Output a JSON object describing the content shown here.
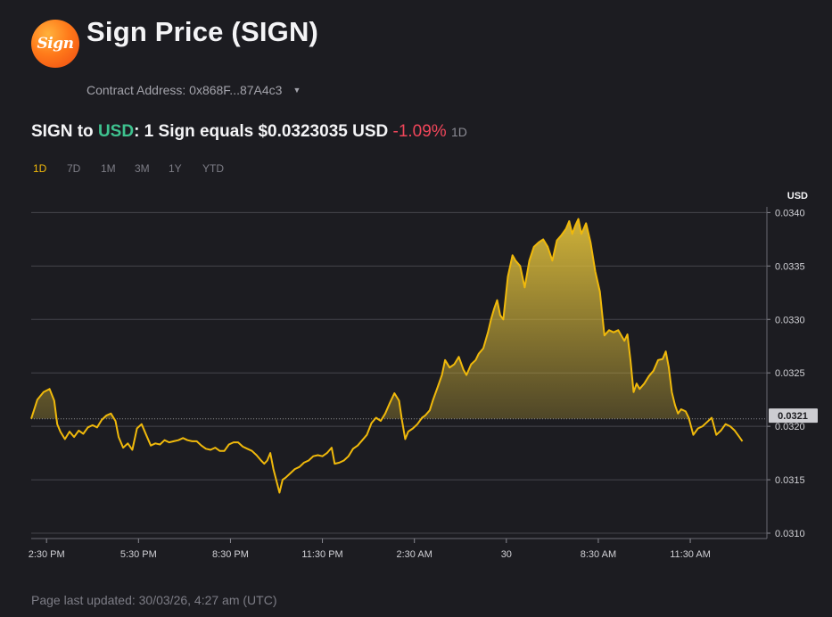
{
  "header": {
    "logo_text": "Sign",
    "title": "Sign Price (SIGN)"
  },
  "contract": {
    "label": "Contract Address: 0x868F...87A4c3"
  },
  "price": {
    "pair_base": "SIGN to ",
    "pair_quote": "USD",
    "equals_text": ": 1 Sign equals $0.0323035 USD ",
    "change": "-1.09%",
    "period": "1D"
  },
  "ranges": [
    "1D",
    "7D",
    "1M",
    "3M",
    "1Y",
    "YTD"
  ],
  "active_range": "1D",
  "footer": {
    "updated": "Page last updated: 30/03/26, 4:27 am (UTC)"
  },
  "colors": {
    "line": "#f0b90b",
    "positive": "#3ec28f",
    "negative": "#f0465a",
    "background": "#1c1c21"
  },
  "chart_data": {
    "type": "area",
    "unit_label": "USD",
    "current_price_label": "0.0321",
    "baseline": 0.03207,
    "y_ticks": [
      "0.0340",
      "0.0335",
      "0.0330",
      "0.0325",
      "0.0320",
      "0.0315",
      "0.0310"
    ],
    "y_tick_values": [
      0.034,
      0.0335,
      0.033,
      0.0325,
      0.032,
      0.0315,
      0.031
    ],
    "ylim": [
      0.03095,
      0.03402
    ],
    "x_ticks": [
      {
        "label": "2:30 PM",
        "t": 1
      },
      {
        "label": "5:30 PM",
        "t": 4
      },
      {
        "label": "8:30 PM",
        "t": 7
      },
      {
        "label": "11:30 PM",
        "t": 10
      },
      {
        "label": "2:30 AM",
        "t": 13
      },
      {
        "label": "30",
        "t": 16
      },
      {
        "label": "8:30 AM",
        "t": 19
      },
      {
        "label": "11:30 AM",
        "t": 22
      }
    ],
    "xlim": [
      0.5,
      24.5
    ],
    "points": [
      [
        0.5,
        0.03207
      ],
      [
        0.7,
        0.03225
      ],
      [
        0.9,
        0.03232
      ],
      [
        1.1,
        0.03235
      ],
      [
        1.25,
        0.03224
      ],
      [
        1.35,
        0.03202
      ],
      [
        1.45,
        0.03195
      ],
      [
        1.6,
        0.03188
      ],
      [
        1.75,
        0.03195
      ],
      [
        1.9,
        0.0319
      ],
      [
        2.05,
        0.03196
      ],
      [
        2.2,
        0.03193
      ],
      [
        2.35,
        0.03199
      ],
      [
        2.5,
        0.03201
      ],
      [
        2.65,
        0.03199
      ],
      [
        2.8,
        0.03206
      ],
      [
        2.95,
        0.0321
      ],
      [
        3.1,
        0.03212
      ],
      [
        3.25,
        0.03205
      ],
      [
        3.35,
        0.0319
      ],
      [
        3.5,
        0.0318
      ],
      [
        3.65,
        0.03184
      ],
      [
        3.8,
        0.03178
      ],
      [
        3.95,
        0.03198
      ],
      [
        4.1,
        0.03202
      ],
      [
        4.25,
        0.03192
      ],
      [
        4.4,
        0.03182
      ],
      [
        4.55,
        0.03184
      ],
      [
        4.7,
        0.03183
      ],
      [
        4.85,
        0.03187
      ],
      [
        5.0,
        0.03185
      ],
      [
        5.15,
        0.03186
      ],
      [
        5.3,
        0.03187
      ],
      [
        5.45,
        0.03189
      ],
      [
        5.6,
        0.03187
      ],
      [
        5.75,
        0.03186
      ],
      [
        5.9,
        0.03186
      ],
      [
        6.05,
        0.03182
      ],
      [
        6.2,
        0.03179
      ],
      [
        6.35,
        0.03178
      ],
      [
        6.5,
        0.0318
      ],
      [
        6.65,
        0.03177
      ],
      [
        6.8,
        0.03177
      ],
      [
        6.95,
        0.03183
      ],
      [
        7.1,
        0.03185
      ],
      [
        7.25,
        0.03185
      ],
      [
        7.4,
        0.03181
      ],
      [
        7.55,
        0.03179
      ],
      [
        7.7,
        0.03177
      ],
      [
        7.85,
        0.03173
      ],
      [
        8.0,
        0.03168
      ],
      [
        8.1,
        0.03165
      ],
      [
        8.2,
        0.03168
      ],
      [
        8.3,
        0.03175
      ],
      [
        8.4,
        0.0316
      ],
      [
        8.5,
        0.03149
      ],
      [
        8.6,
        0.03138
      ],
      [
        8.7,
        0.0315
      ],
      [
        8.8,
        0.03152
      ],
      [
        8.95,
        0.03156
      ],
      [
        9.1,
        0.0316
      ],
      [
        9.25,
        0.03162
      ],
      [
        9.4,
        0.03166
      ],
      [
        9.55,
        0.03168
      ],
      [
        9.7,
        0.03172
      ],
      [
        9.85,
        0.03173
      ],
      [
        10.0,
        0.03172
      ],
      [
        10.15,
        0.03175
      ],
      [
        10.3,
        0.0318
      ],
      [
        10.4,
        0.03165
      ],
      [
        10.55,
        0.03166
      ],
      [
        10.7,
        0.03168
      ],
      [
        10.85,
        0.03172
      ],
      [
        11.0,
        0.03179
      ],
      [
        11.15,
        0.03182
      ],
      [
        11.3,
        0.03187
      ],
      [
        11.45,
        0.03192
      ],
      [
        11.6,
        0.03203
      ],
      [
        11.75,
        0.03208
      ],
      [
        11.9,
        0.03205
      ],
      [
        12.05,
        0.03212
      ],
      [
        12.2,
        0.03222
      ],
      [
        12.35,
        0.03231
      ],
      [
        12.5,
        0.03224
      ],
      [
        12.6,
        0.03205
      ],
      [
        12.7,
        0.03188
      ],
      [
        12.8,
        0.03195
      ],
      [
        12.95,
        0.03198
      ],
      [
        13.1,
        0.03202
      ],
      [
        13.25,
        0.03208
      ],
      [
        13.35,
        0.0321
      ],
      [
        13.5,
        0.03215
      ],
      [
        13.6,
        0.03224
      ],
      [
        13.75,
        0.03236
      ],
      [
        13.9,
        0.03248
      ],
      [
        14.0,
        0.03262
      ],
      [
        14.15,
        0.03255
      ],
      [
        14.3,
        0.03258
      ],
      [
        14.45,
        0.03265
      ],
      [
        14.6,
        0.03253
      ],
      [
        14.7,
        0.03248
      ],
      [
        14.85,
        0.03258
      ],
      [
        15.0,
        0.03262
      ],
      [
        15.1,
        0.03268
      ],
      [
        15.25,
        0.03273
      ],
      [
        15.4,
        0.03288
      ],
      [
        15.5,
        0.033
      ],
      [
        15.6,
        0.0331
      ],
      [
        15.7,
        0.03318
      ],
      [
        15.8,
        0.03304
      ],
      [
        15.9,
        0.033
      ],
      [
        16.05,
        0.0334
      ],
      [
        16.2,
        0.0336
      ],
      [
        16.3,
        0.03355
      ],
      [
        16.45,
        0.0335
      ],
      [
        16.6,
        0.0333
      ],
      [
        16.75,
        0.03355
      ],
      [
        16.9,
        0.03368
      ],
      [
        17.05,
        0.03372
      ],
      [
        17.2,
        0.03375
      ],
      [
        17.35,
        0.03368
      ],
      [
        17.5,
        0.03355
      ],
      [
        17.65,
        0.03374
      ],
      [
        17.8,
        0.03379
      ],
      [
        17.95,
        0.03385
      ],
      [
        18.05,
        0.03392
      ],
      [
        18.15,
        0.0338
      ],
      [
        18.25,
        0.03388
      ],
      [
        18.35,
        0.03394
      ],
      [
        18.45,
        0.0338
      ],
      [
        18.6,
        0.0339
      ],
      [
        18.75,
        0.03372
      ],
      [
        18.9,
        0.03345
      ],
      [
        19.05,
        0.03326
      ],
      [
        19.2,
        0.03285
      ],
      [
        19.35,
        0.0329
      ],
      [
        19.5,
        0.03288
      ],
      [
        19.65,
        0.0329
      ],
      [
        19.75,
        0.03285
      ],
      [
        19.85,
        0.0328
      ],
      [
        19.95,
        0.03286
      ],
      [
        20.05,
        0.03262
      ],
      [
        20.15,
        0.03232
      ],
      [
        20.25,
        0.0324
      ],
      [
        20.35,
        0.03235
      ],
      [
        20.5,
        0.0324
      ],
      [
        20.65,
        0.03247
      ],
      [
        20.8,
        0.03252
      ],
      [
        20.95,
        0.03262
      ],
      [
        21.1,
        0.03263
      ],
      [
        21.2,
        0.0327
      ],
      [
        21.3,
        0.03255
      ],
      [
        21.4,
        0.03232
      ],
      [
        21.5,
        0.0322
      ],
      [
        21.6,
        0.03212
      ],
      [
        21.7,
        0.03216
      ],
      [
        21.85,
        0.03214
      ],
      [
        21.95,
        0.03208
      ],
      [
        22.1,
        0.03192
      ],
      [
        22.25,
        0.03198
      ],
      [
        22.4,
        0.032
      ],
      [
        22.55,
        0.03204
      ],
      [
        22.7,
        0.03208
      ],
      [
        22.85,
        0.03192
      ],
      [
        23.0,
        0.03196
      ],
      [
        23.15,
        0.03202
      ],
      [
        23.3,
        0.032
      ],
      [
        23.45,
        0.03196
      ],
      [
        23.6,
        0.0319
      ],
      [
        23.7,
        0.03186
      ]
    ]
  }
}
